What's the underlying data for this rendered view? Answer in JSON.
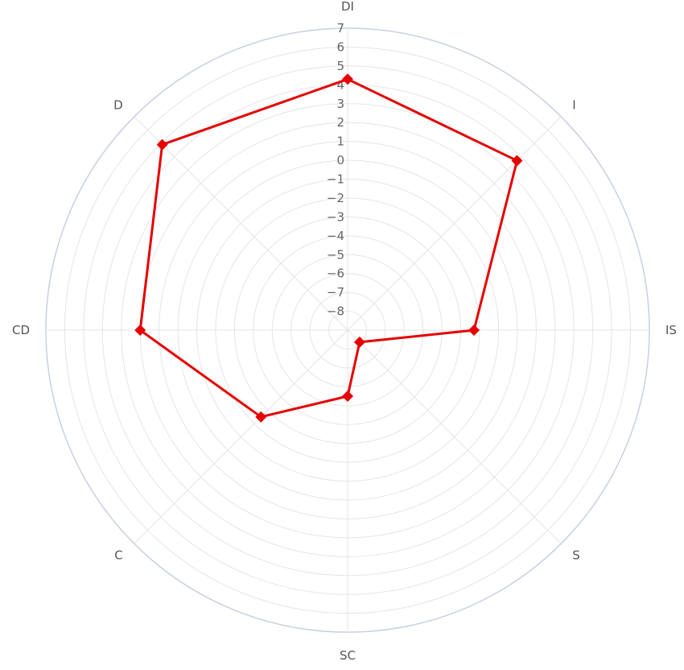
{
  "chart_data": {
    "type": "radar",
    "categories": [
      "DI",
      "I",
      "IS",
      "S",
      "SC",
      "C",
      "CD",
      "D"
    ],
    "radial_ticks": [
      7,
      6,
      5,
      4,
      3,
      2,
      1,
      0,
      "−1",
      "−2",
      "−3",
      "−4",
      "−5",
      "−6",
      "−7",
      "−8"
    ],
    "rlim": [
      -9,
      7
    ],
    "series": [
      {
        "values": [
          4.3,
          3.7,
          -2.3,
          -8.1,
          -5.5,
          -2.5,
          2.0,
          4.9
        ]
      }
    ],
    "grid": true,
    "colors": {
      "series": "#e60000",
      "grid": "#e5e5e5",
      "outer_ring": "#c8d0e0",
      "tick_text": "#666666"
    }
  }
}
